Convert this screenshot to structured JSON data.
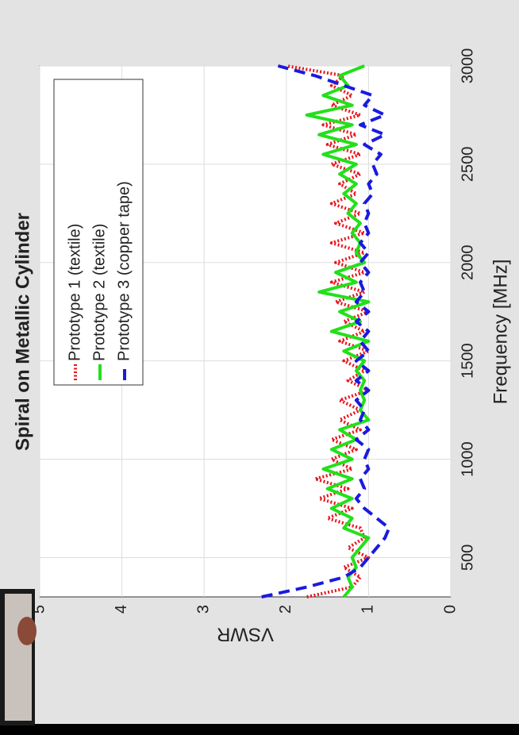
{
  "chart_data": {
    "type": "line",
    "title": "Spiral on Metallic Cylinder",
    "xlabel": "Frequency [MHz]",
    "ylabel": "VSWR",
    "x": [
      300,
      350,
      400,
      450,
      500,
      550,
      600,
      650,
      700,
      750,
      800,
      850,
      900,
      950,
      1000,
      1050,
      1100,
      1150,
      1200,
      1250,
      1300,
      1350,
      1400,
      1450,
      1500,
      1550,
      1600,
      1650,
      1700,
      1750,
      1800,
      1850,
      1900,
      1950,
      2000,
      2050,
      2100,
      2150,
      2200,
      2250,
      2300,
      2350,
      2400,
      2450,
      2500,
      2550,
      2600,
      2650,
      2700,
      2750,
      2800,
      2850,
      2900,
      2950,
      3000
    ],
    "series": [
      {
        "name": "Prototype 1 (textile)",
        "color": "#e8141c",
        "dash": "dotted",
        "values": [
          1.75,
          1.2,
          1.1,
          1.3,
          1.0,
          1.25,
          1.05,
          1.1,
          1.5,
          1.2,
          1.6,
          1.25,
          1.65,
          1.2,
          1.45,
          1.15,
          1.45,
          1.1,
          1.35,
          1.1,
          1.35,
          1.0,
          1.25,
          1.05,
          1.3,
          1.0,
          1.35,
          1.05,
          1.3,
          1.0,
          1.4,
          1.05,
          1.45,
          1.05,
          1.4,
          1.05,
          1.45,
          1.05,
          1.4,
          1.1,
          1.45,
          1.15,
          1.35,
          1.1,
          1.45,
          1.1,
          1.5,
          1.15,
          1.55,
          1.1,
          1.45,
          1.2,
          1.45,
          1.3,
          2.0
        ]
      },
      {
        "name": "Prototype 2 (textile)",
        "color": "#22e01a",
        "dash": "solid",
        "values": [
          1.3,
          1.2,
          1.25,
          1.15,
          1.2,
          1.1,
          1.0,
          1.3,
          1.2,
          1.45,
          1.2,
          1.5,
          1.2,
          1.55,
          1.2,
          1.45,
          1.15,
          1.35,
          1.0,
          1.1,
          1.05,
          1.1,
          1.05,
          1.15,
          1.05,
          1.3,
          1.0,
          1.45,
          1.1,
          1.35,
          1.0,
          1.6,
          1.15,
          1.4,
          1.05,
          1.15,
          1.1,
          1.2,
          1.1,
          1.25,
          1.15,
          1.3,
          1.15,
          1.35,
          1.15,
          1.55,
          1.15,
          1.6,
          1.2,
          1.75,
          1.2,
          1.55,
          1.25,
          1.35,
          1.05
        ]
      },
      {
        "name": "Prototype 3 (copper tape)",
        "color": "#1a1ae0",
        "dash": "dashed",
        "values": [
          2.3,
          1.75,
          1.3,
          1.1,
          1.0,
          0.9,
          0.8,
          0.75,
          0.9,
          1.05,
          1.15,
          1.05,
          1.1,
          1.0,
          1.05,
          1.0,
          1.15,
          1.0,
          1.1,
          1.05,
          1.15,
          1.0,
          1.15,
          1.0,
          1.15,
          1.0,
          1.1,
          1.0,
          1.15,
          1.0,
          1.15,
          1.05,
          1.1,
          1.0,
          1.1,
          1.0,
          1.1,
          1.0,
          1.05,
          1.0,
          1.05,
          0.95,
          1.0,
          0.9,
          0.95,
          0.85,
          1.05,
          0.8,
          1.1,
          0.8,
          1.05,
          0.95,
          1.3,
          1.65,
          2.1
        ]
      }
    ],
    "xlim": [
      300,
      3000
    ],
    "xticks": [
      500,
      1000,
      1500,
      2000,
      2500,
      3000
    ],
    "ylim": [
      0,
      5
    ],
    "yticks": [
      0,
      1,
      2,
      3,
      4,
      5
    ],
    "grid": true,
    "legend": "upper left"
  }
}
